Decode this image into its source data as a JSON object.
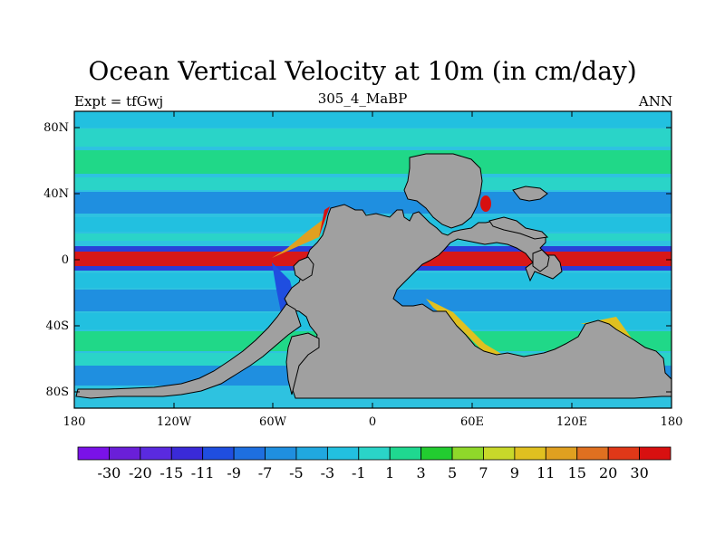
{
  "title": "Ocean Vertical Velocity at 10m (in cm/day)",
  "subtitle_left": "Expt = tfGwj",
  "subtitle_center": "305_4_MaBP",
  "subtitle_right": "ANN",
  "x_ticks": [
    "180",
    "120W",
    "60W",
    "0",
    "60E",
    "120E",
    "180"
  ],
  "y_ticks": [
    "80N",
    "40N",
    "0",
    "40S",
    "80S"
  ],
  "colorbar": {
    "labels": [
      "-30",
      "-20",
      "-15",
      "-11",
      "-9",
      "-7",
      "-5",
      "-3",
      "-1",
      "1",
      "3",
      "5",
      "7",
      "9",
      "11",
      "15",
      "20",
      "30"
    ],
    "colors": [
      "#7a12e8",
      "#6a1fd8",
      "#5a2ae0",
      "#3a2ad8",
      "#1f4ee0",
      "#1e6fe0",
      "#1f8fe0",
      "#20a8e0",
      "#22c0e0",
      "#2ad4c8",
      "#1fd890",
      "#22cc30",
      "#8fd82a",
      "#c8d82a",
      "#e0c020",
      "#e0a020",
      "#e07020",
      "#e03818",
      "#d81010"
    ]
  },
  "colors": {
    "land": "#a0a0a0",
    "ocean_base": "#2ec2e0"
  }
}
